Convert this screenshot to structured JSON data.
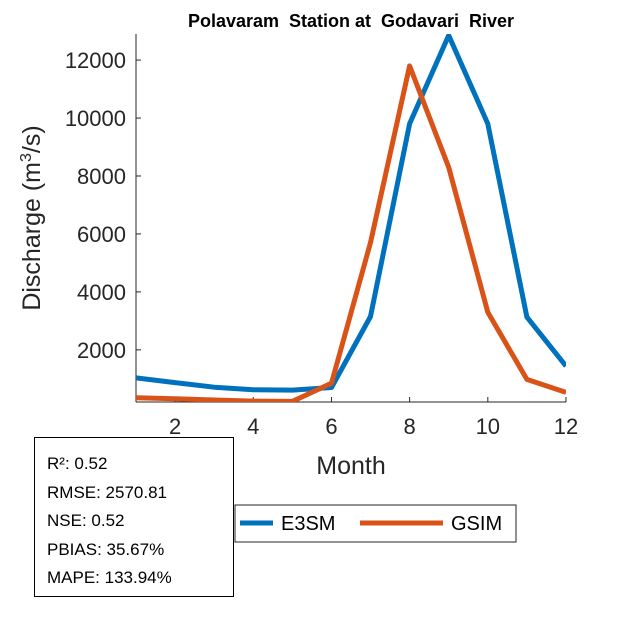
{
  "chart_data": {
    "type": "line",
    "title": "Polavaram  Station at  Godavari  River",
    "xlabel": "Month",
    "ylabel": "Discharge (m",
    "ylabel_sup": "3",
    "ylabel_tail": "/s)",
    "xlim": [
      1,
      12
    ],
    "ylim": [
      200,
      12900
    ],
    "xticks": [
      2,
      4,
      6,
      8,
      10,
      12
    ],
    "yticks": [
      2000,
      4000,
      6000,
      8000,
      10000,
      12000
    ],
    "x": [
      1,
      2,
      3,
      4,
      5,
      6,
      7,
      8,
      9,
      10,
      11,
      12
    ],
    "series": [
      {
        "name": "E3SM",
        "color": "#0072BD",
        "values": [
          1030,
          870,
          710,
          620,
          610,
          700,
          3150,
          9800,
          12850,
          9800,
          3130,
          1440
        ]
      },
      {
        "name": "GSIM",
        "color": "#D95319",
        "values": [
          350,
          310,
          270,
          230,
          220,
          850,
          5700,
          11800,
          8300,
          3300,
          980,
          530
        ]
      }
    ],
    "legend_position": "bottom"
  },
  "stats": {
    "r2": "R²: 0.52",
    "rmse": "RMSE: 2570.81",
    "nse": "NSE: 0.52",
    "pbias": "PBIAS: 35.67%",
    "mape": "MAPE: 133.94%"
  }
}
